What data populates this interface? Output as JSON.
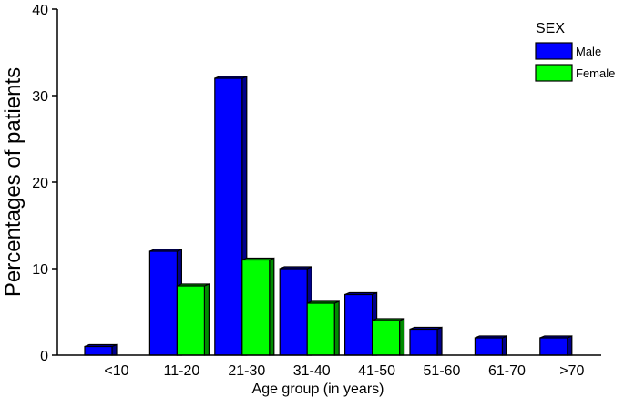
{
  "chart_data": {
    "type": "bar",
    "style": "3d-clustered",
    "title": "",
    "xlabel": "Age group (in years)",
    "ylabel": "Percentages of patients",
    "ylim": [
      0,
      40
    ],
    "yticks": [
      "0",
      "10",
      "20",
      "30",
      "40"
    ],
    "categories": [
      "<10",
      "11-20",
      "21-30",
      "31-40",
      "41-50",
      "51-60",
      "61-70",
      ">70"
    ],
    "legend": {
      "title": "SEX",
      "position": "top-right"
    },
    "grid": false,
    "series": [
      {
        "name": "Male",
        "color": "#0000ff",
        "values": [
          1,
          12,
          32,
          10,
          7,
          3,
          2,
          2
        ]
      },
      {
        "name": "Female",
        "color": "#00ff00",
        "values": [
          0,
          8,
          11,
          6,
          4,
          0,
          0,
          0
        ]
      }
    ]
  }
}
